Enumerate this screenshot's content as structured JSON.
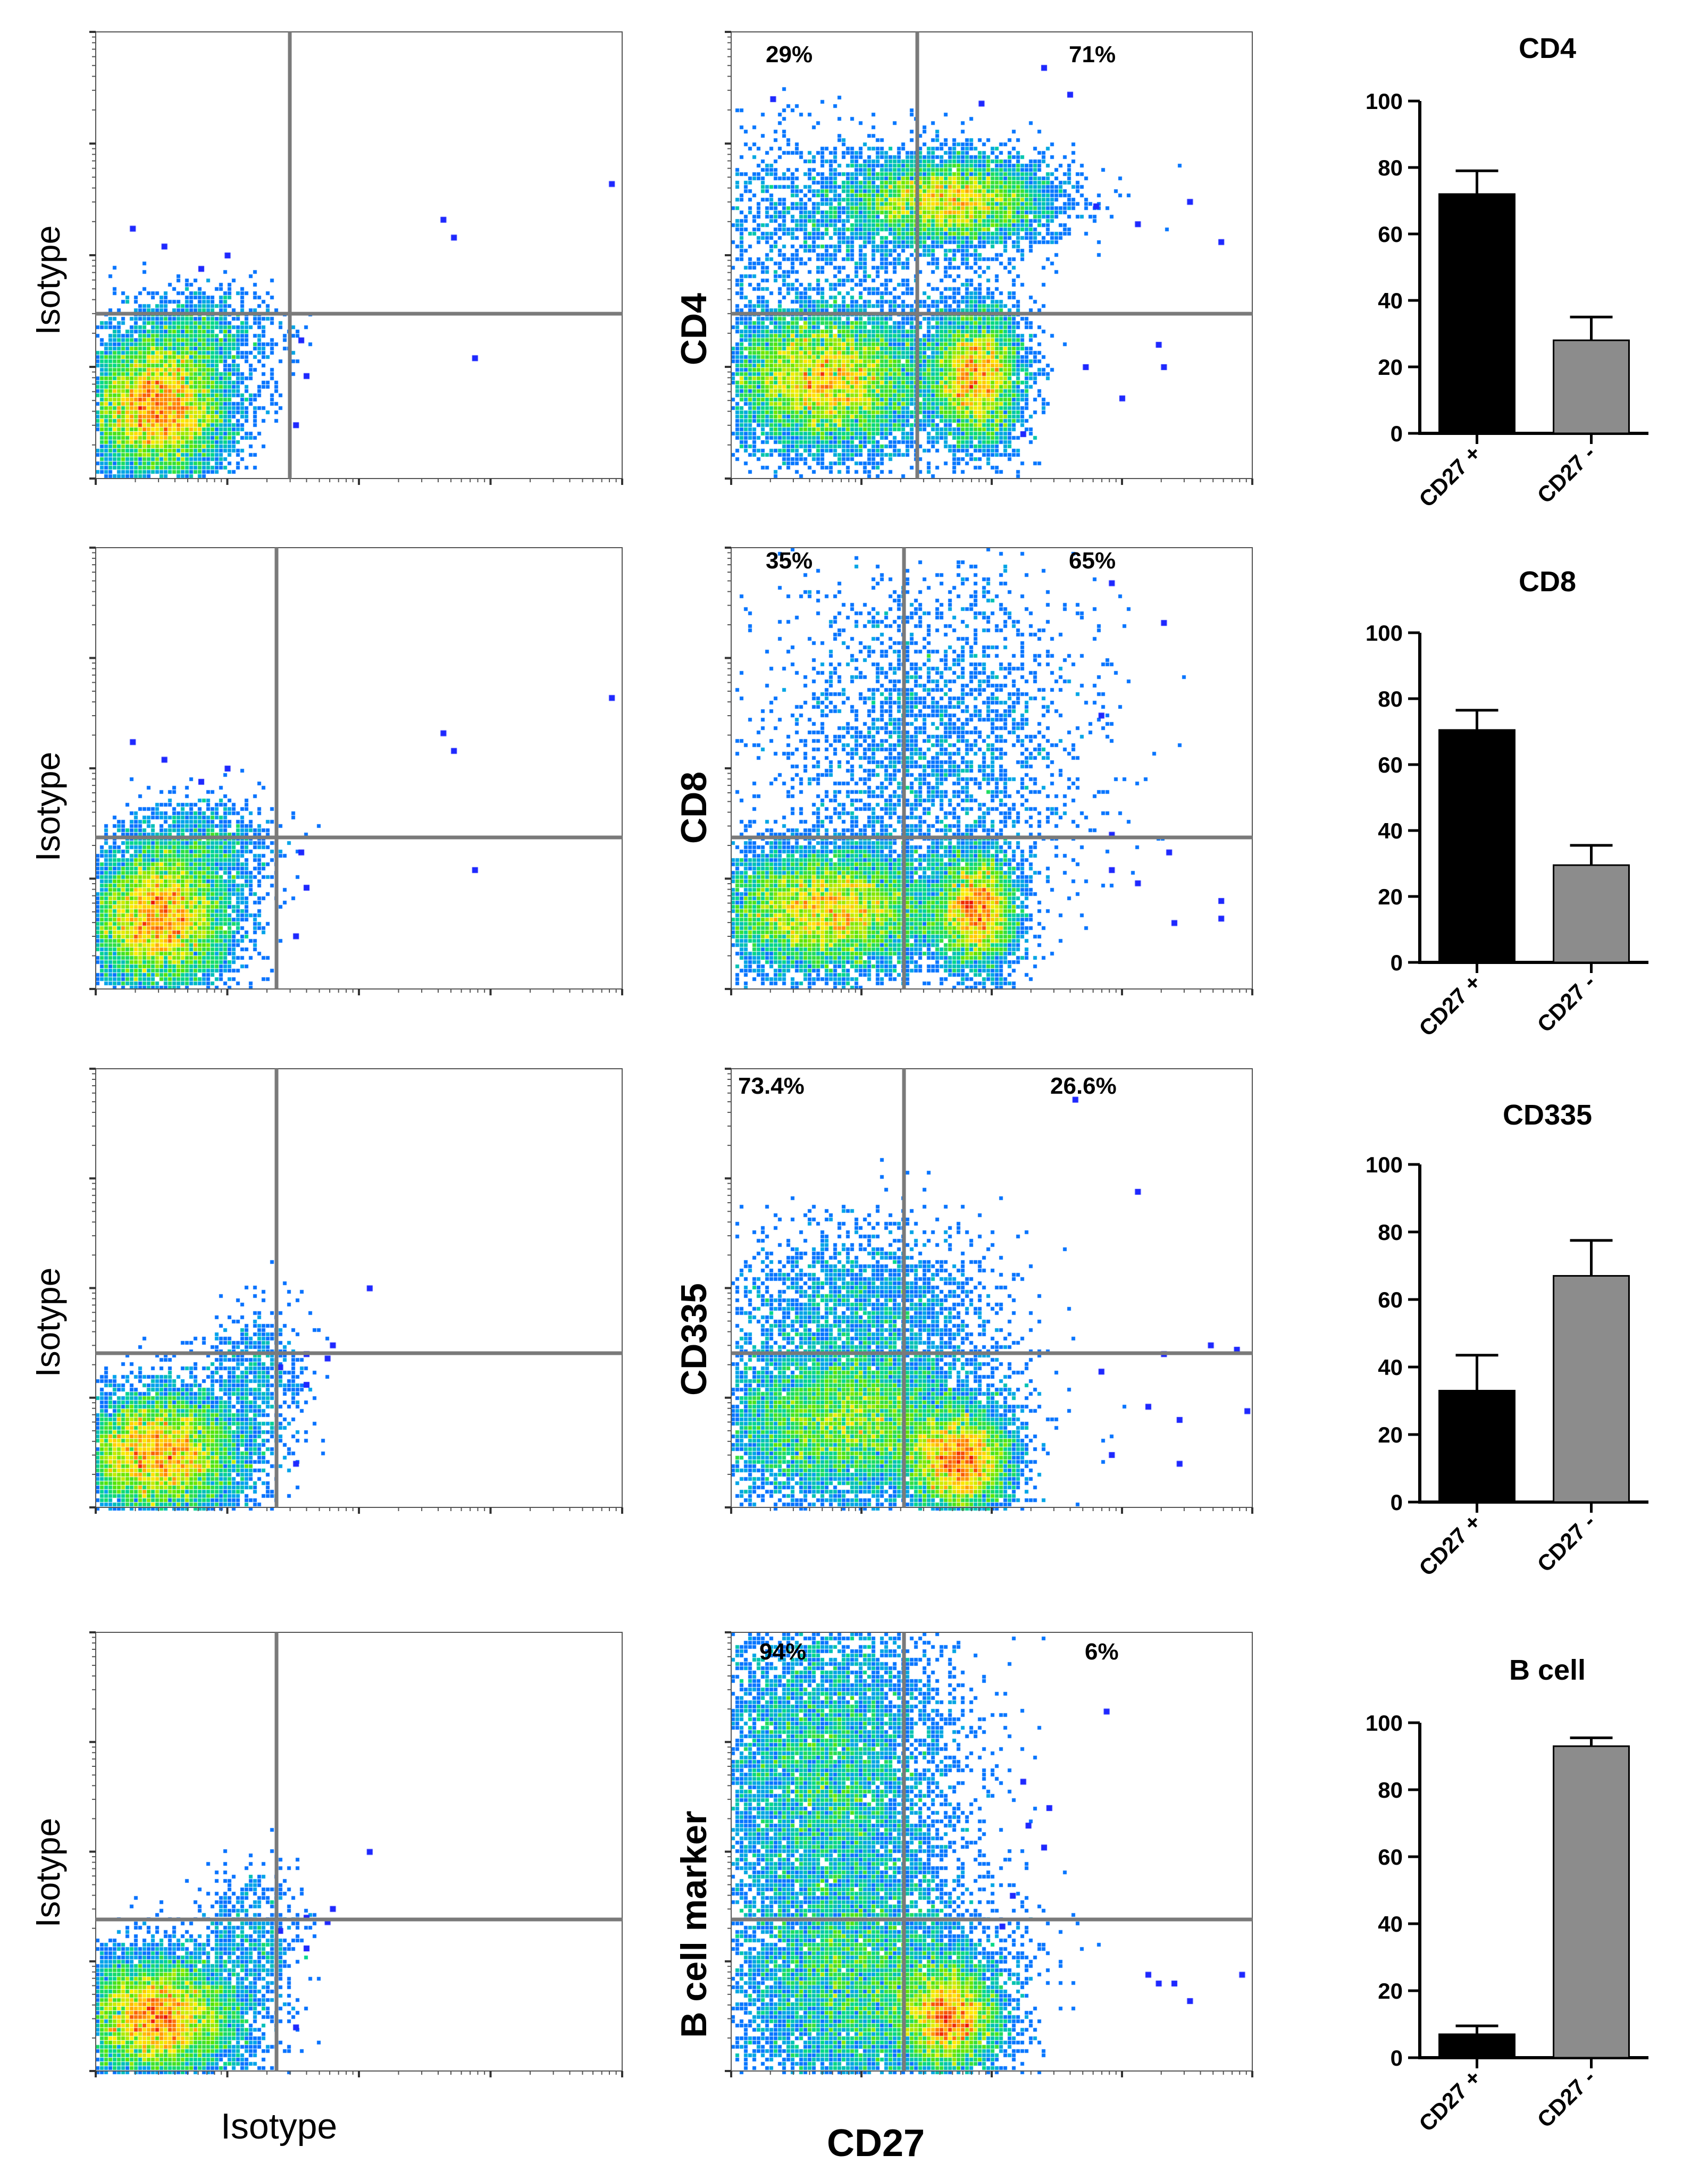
{
  "figure": {
    "isotype_axis_label": "Isotype",
    "cd27_axis_label": "CD27"
  },
  "chart_data": [
    {
      "type": "scatter",
      "panel": "row1-isotype",
      "ylabel": "Isotype",
      "xlabel": "Isotype",
      "quadrant_labels": []
    },
    {
      "type": "scatter",
      "panel": "row1-marker",
      "ylabel": "CD4",
      "xlabel": "CD27",
      "quadrant_labels": [
        "29%",
        "71%"
      ]
    },
    {
      "type": "bar",
      "panel": "row1-summary",
      "title": "CD4",
      "categories": [
        "CD27 +",
        "CD27 -"
      ],
      "values": [
        72,
        28
      ],
      "errors": [
        7,
        7
      ],
      "colors": [
        "#000000",
        "#8c8c8c"
      ],
      "ylim": [
        0,
        100
      ],
      "yticks": [
        "0",
        "20",
        "40",
        "60",
        "80",
        "100"
      ]
    },
    {
      "type": "scatter",
      "panel": "row2-isotype",
      "ylabel": "Isotype",
      "xlabel": "Isotype",
      "quadrant_labels": []
    },
    {
      "type": "scatter",
      "panel": "row2-marker",
      "ylabel": "CD8",
      "xlabel": "CD27",
      "quadrant_labels": [
        "35%",
        "65%"
      ]
    },
    {
      "type": "bar",
      "panel": "row2-summary",
      "title": "CD8",
      "categories": [
        "CD27 +",
        "CD27 -"
      ],
      "values": [
        70.5,
        29.5
      ],
      "errors": [
        6,
        6
      ],
      "colors": [
        "#000000",
        "#8c8c8c"
      ],
      "ylim": [
        0,
        100
      ],
      "yticks": [
        "0",
        "20",
        "40",
        "60",
        "80",
        "100"
      ]
    },
    {
      "type": "scatter",
      "panel": "row3-isotype",
      "ylabel": "Isotype",
      "xlabel": "Isotype",
      "quadrant_labels": []
    },
    {
      "type": "scatter",
      "panel": "row3-marker",
      "ylabel": "CD335",
      "xlabel": "CD27",
      "quadrant_labels": [
        "73.4%",
        "26.6%"
      ]
    },
    {
      "type": "bar",
      "panel": "row3-summary",
      "title": "CD335",
      "categories": [
        "CD27 +",
        "CD27 -"
      ],
      "values": [
        33,
        67
      ],
      "errors": [
        10.5,
        10.5
      ],
      "colors": [
        "#000000",
        "#8c8c8c"
      ],
      "ylim": [
        0,
        100
      ],
      "yticks": [
        "0",
        "20",
        "40",
        "60",
        "80",
        "100"
      ]
    },
    {
      "type": "scatter",
      "panel": "row4-isotype",
      "ylabel": "Isotype",
      "xlabel": "Isotype",
      "quadrant_labels": []
    },
    {
      "type": "scatter",
      "panel": "row4-marker",
      "ylabel": "B cell marker",
      "xlabel": "CD27",
      "quadrant_labels": [
        "94%",
        "6%"
      ]
    },
    {
      "type": "bar",
      "panel": "row4-summary",
      "title": "B cell",
      "categories": [
        "CD27 +",
        "CD27 -"
      ],
      "values": [
        7,
        93
      ],
      "errors": [
        2.5,
        2.5
      ],
      "colors": [
        "#000000",
        "#8c8c8c"
      ],
      "ylim": [
        0,
        100
      ],
      "yticks": [
        "0",
        "20",
        "40",
        "60",
        "80",
        "100"
      ]
    }
  ]
}
